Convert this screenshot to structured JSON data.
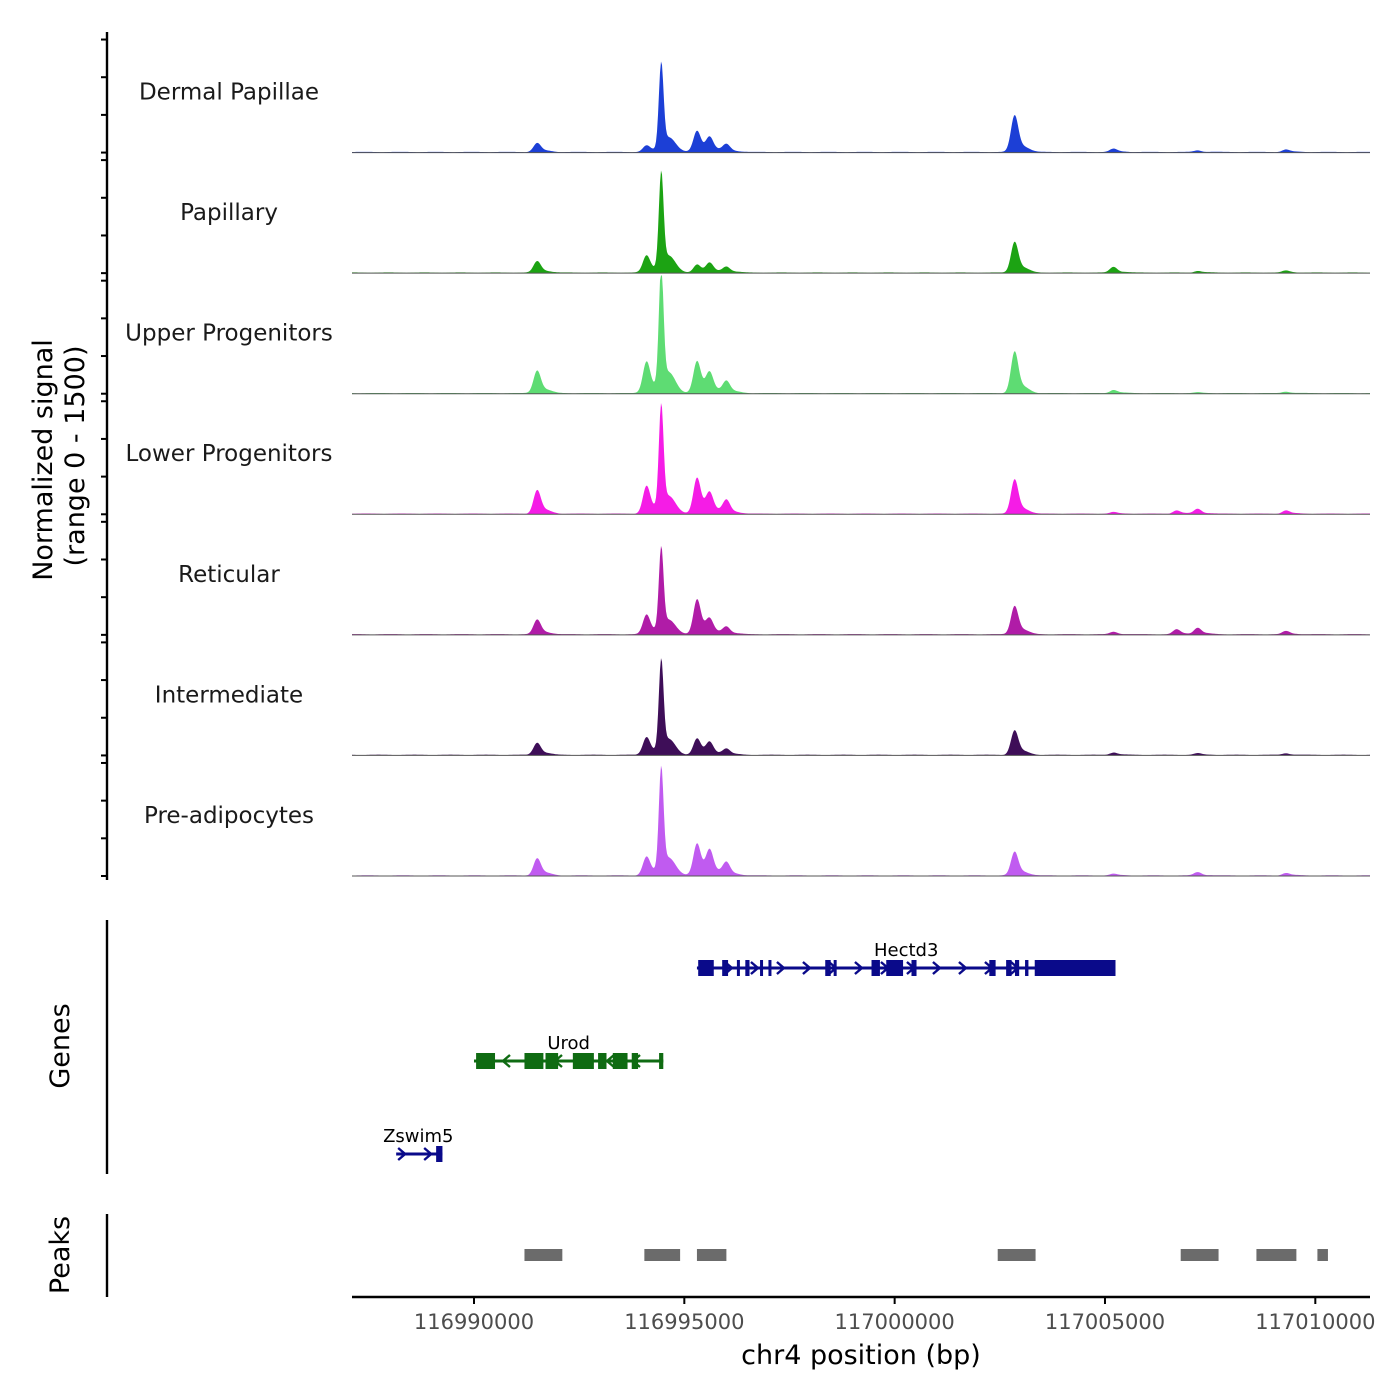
{
  "chart_data": {
    "type": "area",
    "title": "",
    "ylabel_line1": "Normalized signal",
    "ylabel_line2": "(range 0 - 1500)",
    "xlabel": "chr4 position (bp)",
    "y_range": [
      0,
      1500
    ],
    "x_range": [
      116987100,
      117011300
    ],
    "x_ticks": [
      116990000,
      116995000,
      117000000,
      117005000,
      117010000
    ],
    "x_tick_labels": [
      "116990000",
      "116995000",
      "117000000",
      "117005000",
      "117010000"
    ],
    "peak_positions": [
      116989340,
      116991500,
      116993450,
      116994100,
      116994450,
      116995300,
      116995600,
      116996000,
      116999100,
      117002700,
      117002850,
      117005200,
      117006700,
      117007200,
      117009300
    ],
    "tracks": [
      {
        "name": "Dermal Papillae",
        "color": "#1c3fd6",
        "peaks": [
          0,
          110,
          0,
          80,
          1100,
          260,
          160,
          90,
          0,
          0,
          450,
          40,
          0,
          20,
          30
        ]
      },
      {
        "name": "Papillary",
        "color": "#1ca313",
        "peaks": [
          0,
          140,
          0,
          210,
          1230,
          100,
          110,
          70,
          0,
          0,
          380,
          70,
          0,
          20,
          25
        ]
      },
      {
        "name": "Upper Progenitors",
        "color": "#5edc73",
        "peaks": [
          0,
          280,
          0,
          390,
          1520,
          390,
          220,
          140,
          0,
          0,
          510,
          40,
          0,
          10,
          20
        ]
      },
      {
        "name": "Lower Progenitors",
        "color": "#f51ce6",
        "peaks": [
          0,
          290,
          0,
          340,
          1320,
          440,
          220,
          160,
          0,
          0,
          420,
          20,
          40,
          60,
          40
        ]
      },
      {
        "name": "Reticular",
        "color": "#b01ca7",
        "peaks": [
          0,
          180,
          0,
          240,
          1060,
          430,
          150,
          90,
          0,
          0,
          350,
          30,
          60,
          80,
          40
        ]
      },
      {
        "name": "Intermediate",
        "color": "#3e0e58",
        "peaks": [
          0,
          150,
          0,
          220,
          1160,
          200,
          140,
          70,
          0,
          0,
          300,
          30,
          0,
          20,
          20
        ]
      },
      {
        "name": "Pre-adipocytes",
        "color": "#c05bf0",
        "peaks": [
          0,
          210,
          0,
          230,
          1320,
          390,
          280,
          150,
          0,
          0,
          290,
          20,
          0,
          40,
          30
        ]
      }
    ],
    "genes_label": "Genes",
    "genes": [
      {
        "name": "Hectd3",
        "color": "#0a0a8a",
        "strand": "+",
        "start": 116995300,
        "end": 117005250,
        "exons": [
          [
            116995330,
            116995700
          ],
          [
            116995900,
            116996040
          ],
          [
            116996250,
            116996320
          ],
          [
            116996450,
            116996550
          ],
          [
            116996800,
            116996860
          ],
          [
            116997000,
            116997070
          ],
          [
            116998350,
            116998480
          ],
          [
            116998550,
            116998620
          ],
          [
            116999450,
            116999650
          ],
          [
            116999800,
            117000200
          ],
          [
            117000400,
            117000520
          ],
          [
            117002250,
            117002400
          ],
          [
            117002650,
            117002780
          ],
          [
            117002860,
            117002960
          ],
          [
            117003100,
            117003180
          ],
          [
            117003330,
            117005250
          ]
        ]
      },
      {
        "name": "Urod",
        "color": "#0f6b12",
        "strand": "-",
        "start": 116990000,
        "end": 116994500,
        "exons": [
          [
            116990050,
            116990500
          ],
          [
            116991200,
            116991650
          ],
          [
            116991700,
            116992000
          ],
          [
            116992350,
            116992850
          ],
          [
            116992950,
            116993150
          ],
          [
            116993300,
            116993650
          ],
          [
            116993750,
            116993900
          ],
          [
            116994400,
            116994500
          ]
        ]
      },
      {
        "name": "Zswim5",
        "color": "#0a0a8a",
        "strand": "+",
        "start": 116988150,
        "end": 116989250,
        "exons": [
          [
            116989100,
            116989250
          ]
        ]
      }
    ],
    "peaks_label": "Peaks",
    "peaks_color": "#6b6b6b",
    "peak_regions": [
      [
        116991200,
        116992100
      ],
      [
        116994050,
        116994900
      ],
      [
        116995300,
        116996000
      ],
      [
        117002450,
        117003350
      ],
      [
        117006800,
        117007700
      ],
      [
        117008600,
        117009550
      ],
      [
        117010050,
        117010300
      ]
    ]
  }
}
